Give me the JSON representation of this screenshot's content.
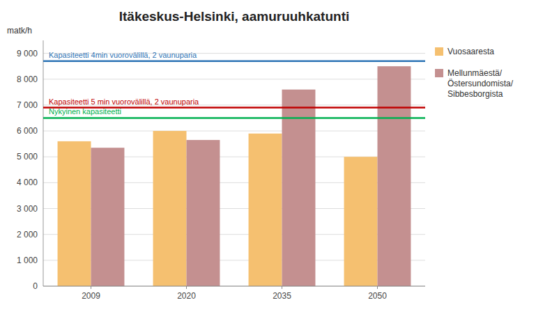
{
  "chart_data": {
    "type": "bar",
    "title": "Itäkeskus-Helsinki, aamuruuhkatunti",
    "ylabel": "matk/h",
    "categories": [
      "2009",
      "2020",
      "2035",
      "2050"
    ],
    "series": [
      {
        "name": "Vuosaaresta",
        "color": "#F5C070",
        "values": [
          5600,
          6000,
          5900,
          5000
        ]
      },
      {
        "name": "Mellunmäestä/\nÖstersundomista/\nSibbesborgista",
        "color": "#C49090",
        "values": [
          5350,
          5650,
          7600,
          8500
        ]
      }
    ],
    "annotations": [
      {
        "text": "Kapasiteetti 4min vuorovälillä, 2 vaunuparia",
        "y": 8700,
        "color": "#2E75B6"
      },
      {
        "text": "Kapasiteetti 5 min vuorovälillä, 2 vaunuparia",
        "y": 6900,
        "color": "#C00000"
      },
      {
        "text": "Nykyinen kapasiteetti",
        "y": 6500,
        "color": "#00B050"
      }
    ],
    "ylim": [
      0,
      9500
    ],
    "yticks": [
      0,
      {
        "value": 1000,
        "label": "1 000"
      },
      {
        "value": 2000,
        "label": "2 000"
      },
      {
        "value": 3000,
        "label": "3 000"
      },
      {
        "value": 4000,
        "label": "4 000"
      },
      {
        "value": 5000,
        "label": "5 000"
      },
      {
        "value": 6000,
        "label": "6 000"
      },
      {
        "value": 7000,
        "label": "7 000"
      },
      {
        "value": 8000,
        "label": "8 000"
      },
      {
        "value": 9000,
        "label": "9 000"
      }
    ],
    "grid": true,
    "legend": "right"
  }
}
